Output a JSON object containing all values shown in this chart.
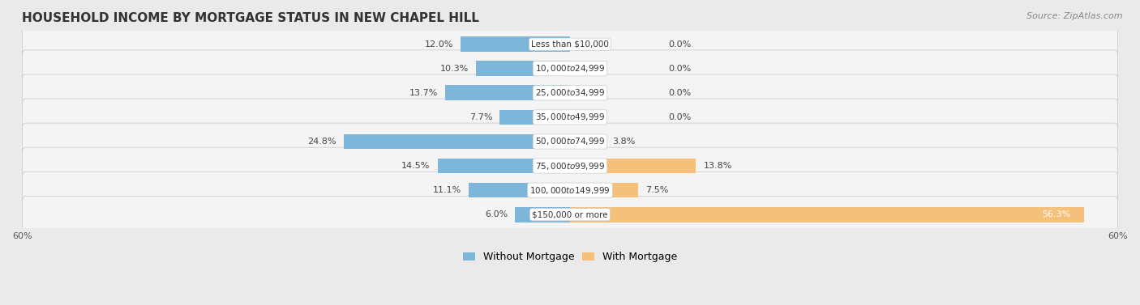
{
  "title": "HOUSEHOLD INCOME BY MORTGAGE STATUS IN NEW CHAPEL HILL",
  "source": "Source: ZipAtlas.com",
  "categories": [
    "Less than $10,000",
    "$10,000 to $24,999",
    "$25,000 to $34,999",
    "$35,000 to $49,999",
    "$50,000 to $74,999",
    "$75,000 to $99,999",
    "$100,000 to $149,999",
    "$150,000 or more"
  ],
  "without_mortgage": [
    12.0,
    10.3,
    13.7,
    7.7,
    24.8,
    14.5,
    11.1,
    6.0
  ],
  "with_mortgage": [
    0.0,
    0.0,
    0.0,
    0.0,
    3.8,
    13.8,
    7.5,
    56.3
  ],
  "without_mortgage_color": "#7EB6D9",
  "with_mortgage_color": "#F5C07A",
  "background_color": "#EAEAEA",
  "row_bg_color": "#F4F4F4",
  "row_edge_color": "#CCCCCC",
  "axis_limit": 60.0,
  "bar_height": 0.62,
  "title_fontsize": 11,
  "source_fontsize": 8,
  "label_fontsize": 8,
  "category_fontsize": 7.5,
  "legend_fontsize": 9,
  "axis_label_fontsize": 8
}
